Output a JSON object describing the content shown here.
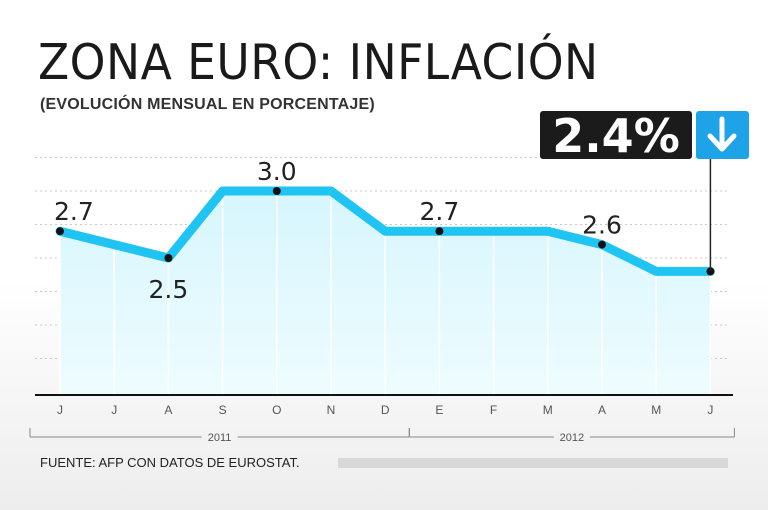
{
  "chart_data": {
    "type": "area",
    "title": "ZONA EURO: INFLACIÓN",
    "subtitle": "(EVOLUCIÓN MENSUAL EN PORCENTAJE)",
    "categories": [
      "J",
      "J",
      "A",
      "S",
      "O",
      "N",
      "D",
      "E",
      "F",
      "M",
      "A",
      "M",
      "J"
    ],
    "values": [
      2.7,
      2.6,
      2.5,
      3.0,
      3.0,
      3.0,
      2.7,
      2.7,
      2.7,
      2.7,
      2.6,
      2.4,
      2.4
    ],
    "point_labels": [
      {
        "index": 0,
        "text": "2.7"
      },
      {
        "index": 2,
        "text": "2.5"
      },
      {
        "index": 4,
        "text": "3.0"
      },
      {
        "index": 7,
        "text": "2.7"
      },
      {
        "index": 10,
        "text": "2.6"
      }
    ],
    "years": [
      {
        "label": "2011",
        "from": 0,
        "to": 6
      },
      {
        "label": "2012",
        "from": 7,
        "to": 12
      }
    ],
    "highlight": {
      "index": 12,
      "text": "2.4%",
      "direction": "down"
    },
    "ylim": [
      1.5,
      3.5
    ],
    "grid": true,
    "xlabel": "",
    "ylabel": ""
  },
  "colors": {
    "line": "#20c4f2",
    "area_top": "#d6f6fd",
    "area_bottom": "#eefcff",
    "badge": "#1b1b1b",
    "arrow_box": "#1ea3e8"
  },
  "source": "FUENTE: AFP CON DATOS DE EUROSTAT."
}
